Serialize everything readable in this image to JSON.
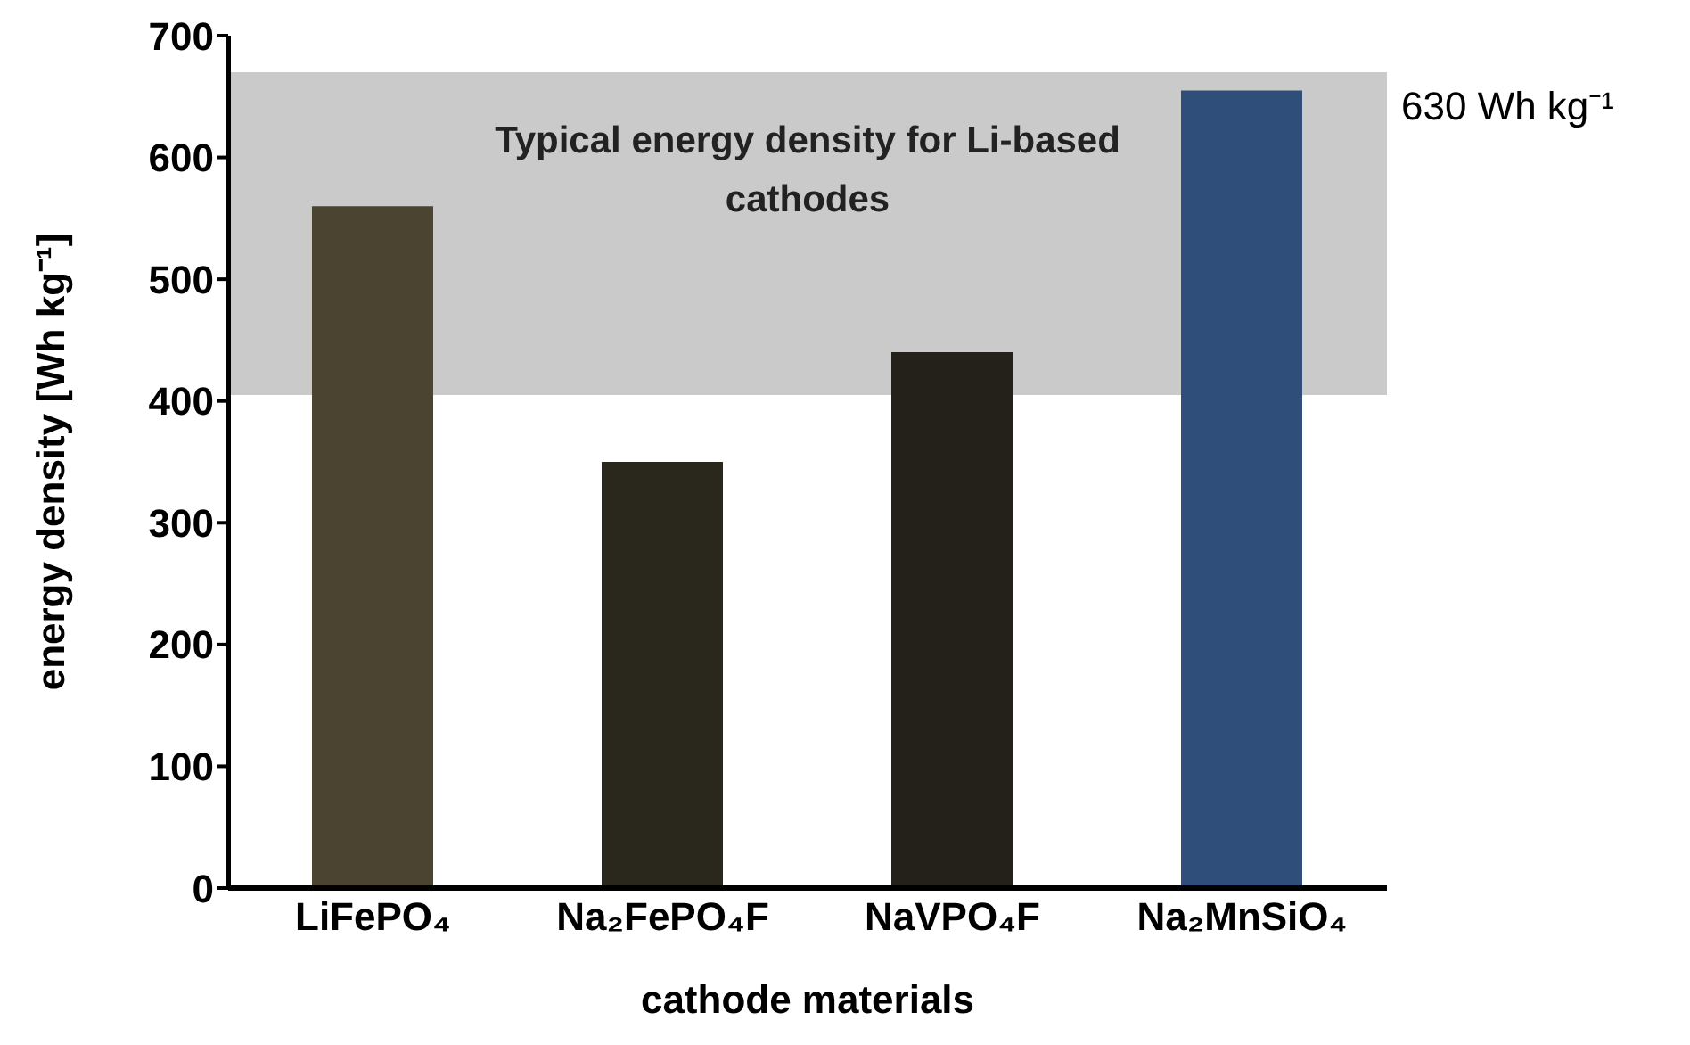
{
  "chart_data": {
    "type": "bar",
    "xlabel": "cathode materials",
    "ylabel": "energy density [Wh kg⁻¹]",
    "categories": [
      "LiFePO₄",
      "Na₂FePO₄F",
      "NaVPO₄F",
      "Na₂MnSiO₄"
    ],
    "values": [
      560,
      350,
      440,
      655
    ],
    "colors": [
      "#4a4430",
      "#2a281c",
      "#23211a",
      "#2f4f7a"
    ],
    "ylim": [
      0,
      700
    ],
    "yticks": [
      0,
      100,
      200,
      300,
      400,
      500,
      600,
      700
    ],
    "bands": [
      {
        "axis": "y",
        "from": 405,
        "to": 670,
        "label": "Typical energy density for Li-based cathodes",
        "color": "#b4b4b4"
      }
    ],
    "annotations": [
      "630 Wh kg⁻¹"
    ]
  }
}
